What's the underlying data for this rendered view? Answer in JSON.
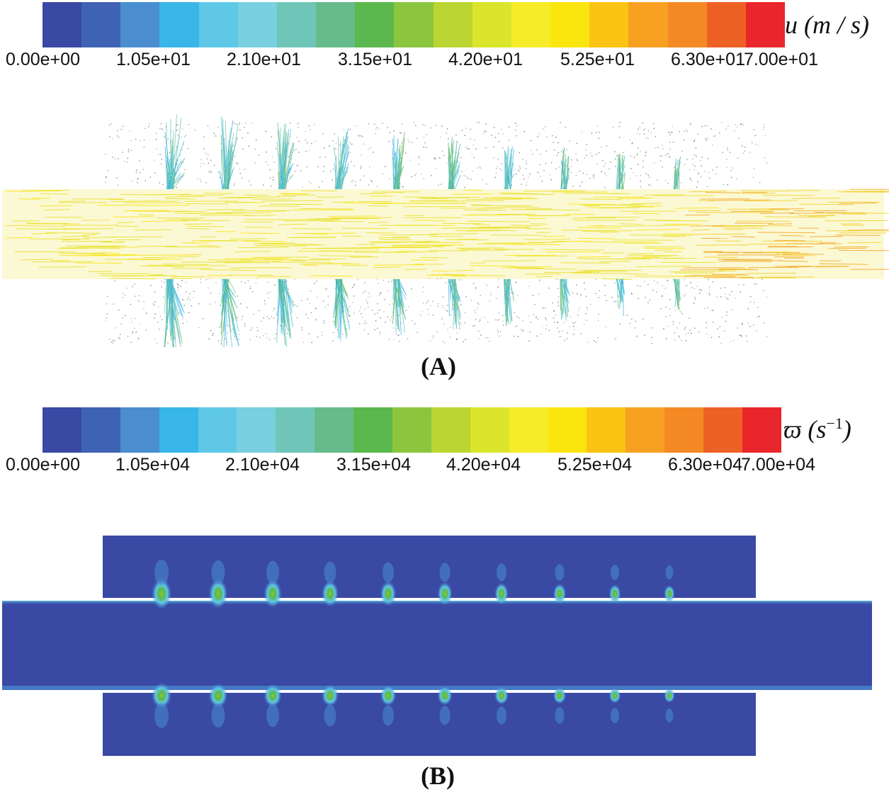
{
  "colormap": [
    "#3949a4",
    "#3f63b4",
    "#4a8ed0",
    "#38b6e8",
    "#5fc8e6",
    "#78d0e0",
    "#6fc6b8",
    "#66bb8a",
    "#5bb84e",
    "#8cc63f",
    "#bbd532",
    "#dbe52c",
    "#f6ec2a",
    "#fbe50f",
    "#fbc414",
    "#f8a022",
    "#f58a24",
    "#ee6125",
    "#e8262b"
  ],
  "panel_a": {
    "colorbar": {
      "ticks": [
        "0.00e+00",
        "1.05e+01",
        "2.10e+01",
        "3.15e+01",
        "4.20e+01",
        "5.25e+01",
        "6.30e+01",
        "7.00e+01"
      ],
      "unit_symbol": "u",
      "unit_rest": "(m / s)"
    },
    "label": "(A)"
  },
  "panel_b": {
    "colorbar": {
      "ticks": [
        "0.00e+00",
        "1.05e+04",
        "2.10e+04",
        "3.15e+04",
        "4.20e+04",
        "5.25e+04",
        "6.30e+04",
        "7.00e+04"
      ],
      "unit_symbol": "ϖ",
      "unit_rest_open": "(s",
      "unit_exp": "−1",
      "unit_rest_close": ")"
    },
    "label": "(B)"
  }
}
